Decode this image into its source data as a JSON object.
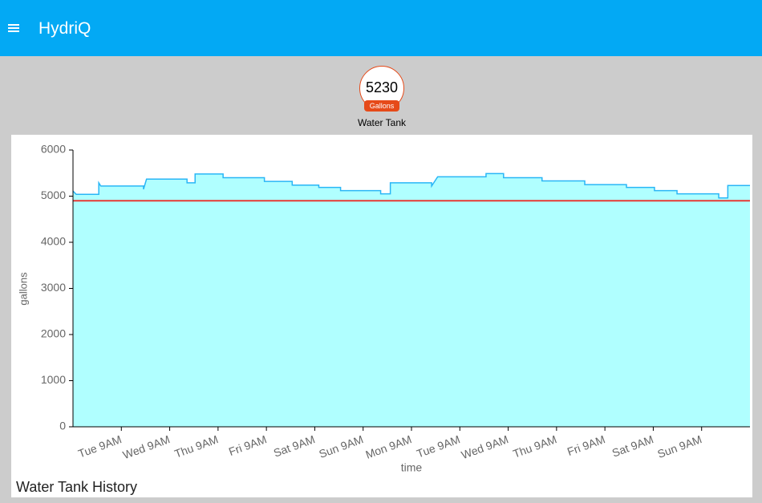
{
  "header": {
    "title": "HydriQ"
  },
  "gauge": {
    "value": 5230,
    "unit": "Gallons",
    "label": "Water Tank"
  },
  "chart_data": {
    "type": "area",
    "title": "Water Tank History",
    "x_label": "time",
    "y_label": "gallons",
    "x": [
      0,
      1.6,
      12.8,
      12.8,
      13.8,
      35,
      35,
      36.5,
      56.6,
      56.6,
      60.6,
      60.6,
      74.5,
      74.5,
      95,
      95,
      108.8,
      108.8,
      122,
      122,
      132.8,
      132.8,
      152.7,
      152.7,
      157.5,
      157.5,
      178,
      178,
      181,
      205,
      205,
      213.7,
      213.7,
      232.8,
      232.8,
      254,
      254,
      274.7,
      274.7,
      288.6,
      288.6,
      299.8,
      299.8,
      320.5,
      320.5,
      325,
      325,
      336
    ],
    "series": [
      {
        "name": "gallons",
        "color": "#29b6f6",
        "fill": "#b0ffff",
        "values": [
          5110,
          5040,
          5040,
          5290,
          5220,
          5220,
          5150,
          5370,
          5370,
          5290,
          5290,
          5480,
          5480,
          5400,
          5400,
          5320,
          5320,
          5240,
          5240,
          5190,
          5190,
          5120,
          5120,
          5050,
          5050,
          5290,
          5290,
          5220,
          5420,
          5420,
          5490,
          5490,
          5400,
          5400,
          5330,
          5330,
          5250,
          5250,
          5190,
          5190,
          5120,
          5120,
          5050,
          5050,
          4960,
          4960,
          5230,
          5230
        ]
      }
    ],
    "reference_line": {
      "value": 4900,
      "color": "#e53935"
    },
    "xlim": [
      0,
      336
    ],
    "xticks": [
      {
        "value": 24,
        "label": "Tue 9AM"
      },
      {
        "value": 48,
        "label": "Wed 9AM"
      },
      {
        "value": 72,
        "label": "Thu 9AM"
      },
      {
        "value": 96,
        "label": "Fri 9AM"
      },
      {
        "value": 120,
        "label": "Sat 9AM"
      },
      {
        "value": 144,
        "label": "Sun 9AM"
      },
      {
        "value": 168,
        "label": "Mon 9AM"
      },
      {
        "value": 192,
        "label": "Tue 9AM"
      },
      {
        "value": 216,
        "label": "Wed 9AM"
      },
      {
        "value": 240,
        "label": "Thu 9AM"
      },
      {
        "value": 264,
        "label": "Fri 9AM"
      },
      {
        "value": 288,
        "label": "Sat 9AM"
      },
      {
        "value": 312,
        "label": "Sun 9AM"
      }
    ],
    "ylim": [
      0,
      6000
    ],
    "yticks": [
      0,
      1000,
      2000,
      3000,
      4000,
      5000,
      6000
    ]
  }
}
